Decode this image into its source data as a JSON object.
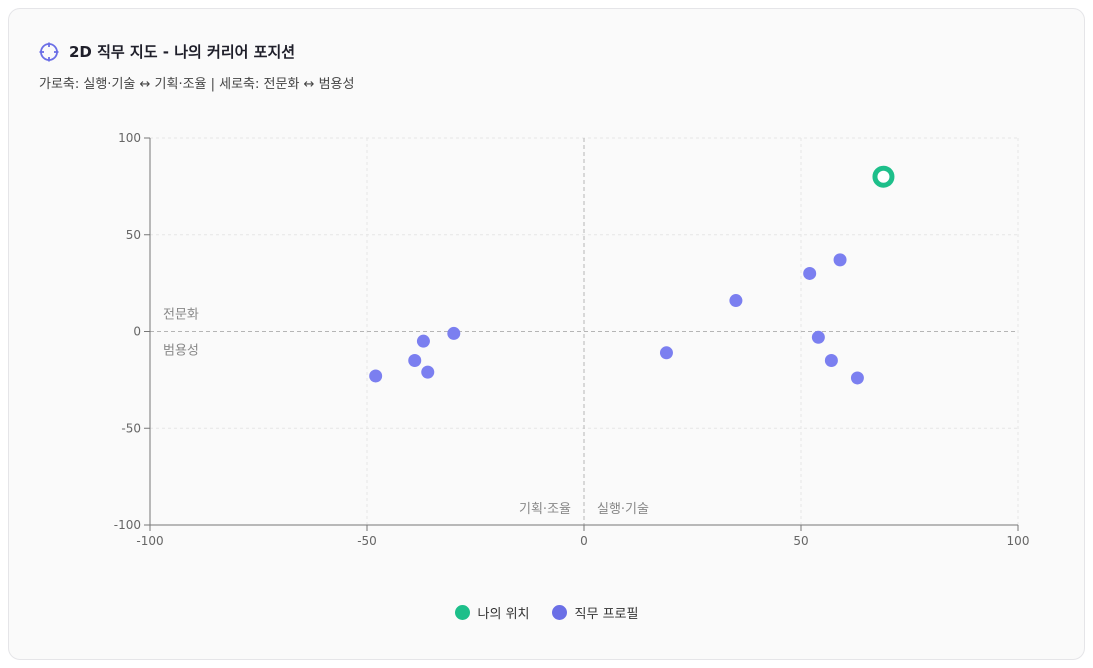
{
  "header": {
    "title": "2D 직무 지도 - 나의 커리어 포지션",
    "subtitle": "가로축: 실행·기술 ↔ 기획·조율 | 세로축: 전문화 ↔ 범용성",
    "icon": "crosshair-icon"
  },
  "colors": {
    "me": "#1dbf8a",
    "job": "#7b7ff0",
    "axis": "#777777",
    "grid": "#e6e6e6",
    "zero_line": "#b5b5b5",
    "quadrant_label": "#888888"
  },
  "chart_data": {
    "type": "scatter",
    "xlim": [
      -100,
      100
    ],
    "ylim": [
      -100,
      100
    ],
    "x_ticks": [
      -100,
      -50,
      0,
      50,
      100
    ],
    "y_ticks": [
      100,
      50,
      0,
      -50,
      -100
    ],
    "grid": true,
    "quadrant_labels": {
      "top_left": "전문화",
      "bottom_left": "범용성",
      "bottom_left_of_center": "기획·조율",
      "bottom_right_of_center": "실행·기술"
    },
    "legend_position": "bottom",
    "series": [
      {
        "name": "나의 위치",
        "color": "#1dbf8a",
        "points": [
          {
            "x": 69,
            "y": 80
          }
        ]
      },
      {
        "name": "직무 프로필",
        "color": "#7b7ff0",
        "points": [
          {
            "x": -48,
            "y": -23
          },
          {
            "x": -39,
            "y": -15
          },
          {
            "x": -37,
            "y": -5
          },
          {
            "x": -36,
            "y": -21
          },
          {
            "x": -30,
            "y": -1
          },
          {
            "x": 19,
            "y": -11
          },
          {
            "x": 35,
            "y": 16
          },
          {
            "x": 52,
            "y": 30
          },
          {
            "x": 54,
            "y": -3
          },
          {
            "x": 57,
            "y": -15
          },
          {
            "x": 59,
            "y": 37
          },
          {
            "x": 63,
            "y": -24
          }
        ]
      }
    ]
  }
}
